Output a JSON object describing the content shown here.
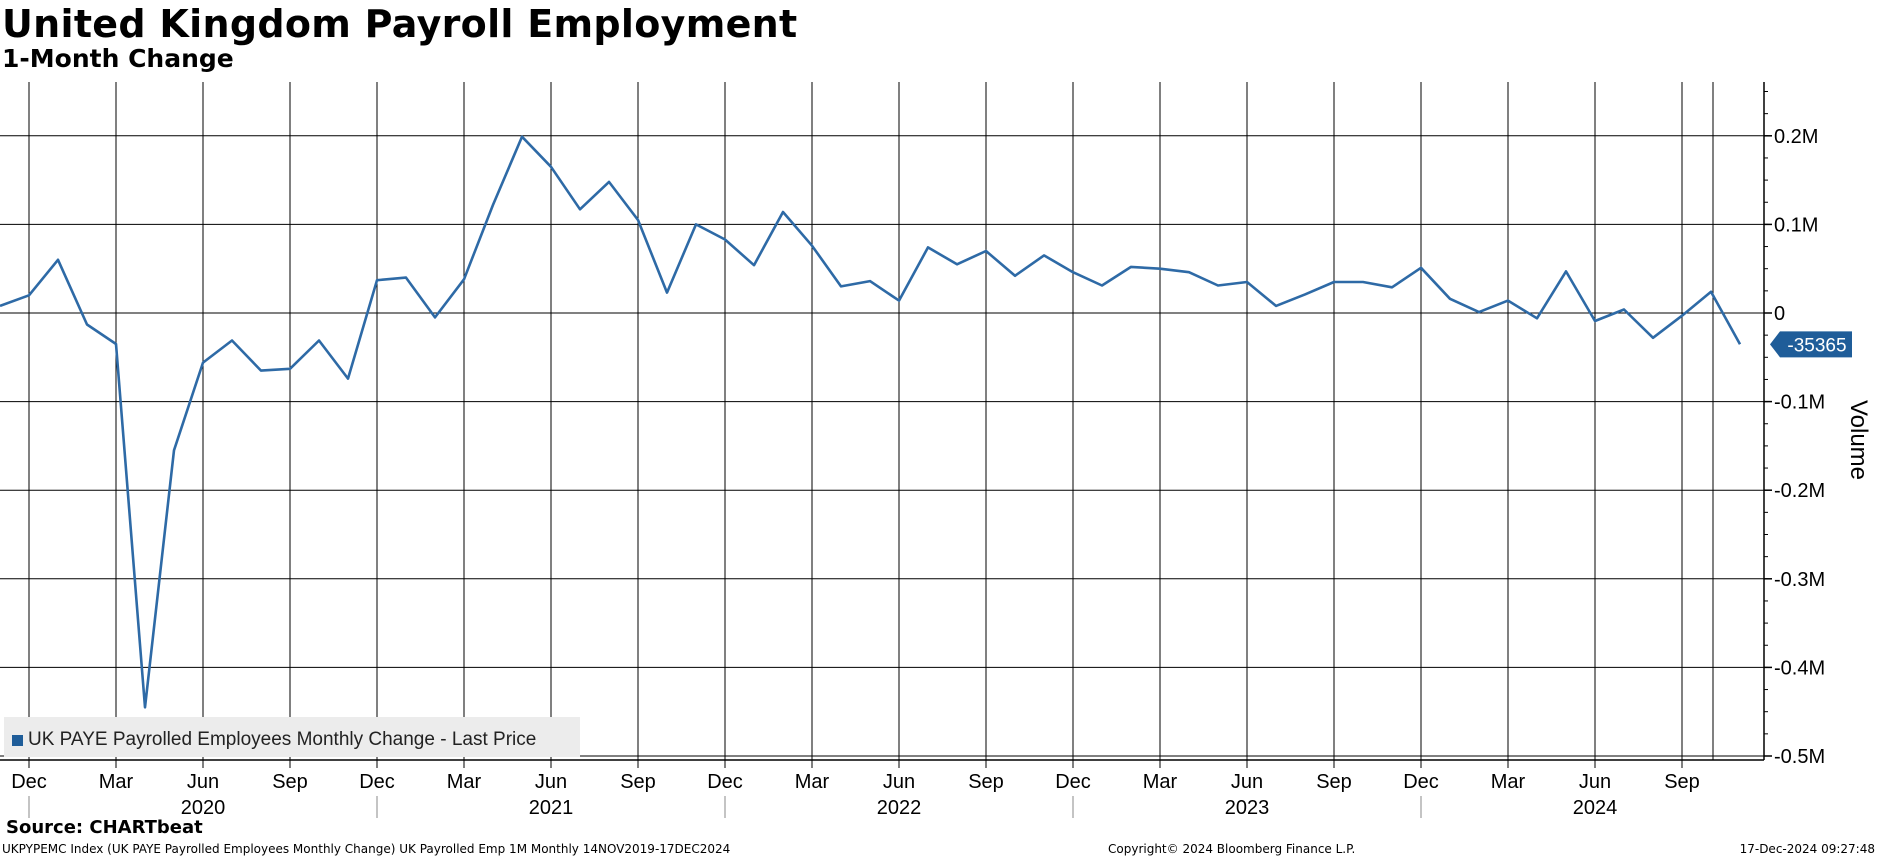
{
  "header": {
    "title": "United Kingdom Payroll Employment",
    "subtitle": "1-Month Change"
  },
  "footer": {
    "source": "Source: CHARTbeat",
    "description": "UKPYPEMC Index (UK PAYE Payrolled Employees Monthly Change) UK Payrolled Emp 1M  Monthly 14NOV2019-17DEC2024",
    "copyright": "Copyright© 2024 Bloomberg Finance L.P.",
    "timestamp": "17-Dec-2024 09:27:48"
  },
  "colors": {
    "line": "#2e6aa6",
    "last_value_bg": "#1f5d99",
    "legend_bg": "#ececec",
    "grid": "#000000"
  },
  "chart_data": {
    "type": "line",
    "ylabel": "Volume",
    "ylim": [
      -500000,
      250000
    ],
    "y_ticks": [
      200000,
      100000,
      0,
      -100000,
      -200000,
      -300000,
      -400000,
      -500000
    ],
    "y_tick_labels": [
      "0.2M",
      "0.1M",
      "0",
      "-0.1M",
      "-0.2M",
      "-0.3M",
      "-0.4M",
      "-0.5M"
    ],
    "x_tick_labels": [
      "Dec",
      "Mar",
      "Jun",
      "Sep",
      "Dec",
      "Mar",
      "Jun",
      "Sep",
      "Dec",
      "Mar",
      "Jun",
      "Sep",
      "Dec",
      "Mar",
      "Jun",
      "Sep",
      "Dec",
      "Mar",
      "Jun",
      "Sep"
    ],
    "x_year_labels": [
      "2020",
      "2021",
      "2022",
      "2023",
      "2024"
    ],
    "grid": true,
    "legend_position": "bottom-left",
    "last_value_label": "-35365",
    "series": [
      {
        "name": "UK PAYE Payrolled Employees Monthly Change - Last Price",
        "start": "2019-11",
        "values": [
          8000,
          20000,
          60000,
          -13000,
          -35000,
          -445000,
          -155000,
          -56000,
          -31000,
          -65000,
          -63000,
          -31000,
          -74000,
          37000,
          40000,
          -5000,
          38000,
          122000,
          199000,
          165000,
          117000,
          148000,
          105000,
          23000,
          100000,
          83000,
          54000,
          114000,
          76000,
          30000,
          36000,
          14000,
          74000,
          55000,
          70000,
          42000,
          65000,
          46000,
          31000,
          52000,
          50000,
          46000,
          31000,
          35000,
          8000,
          21000,
          35000,
          35000,
          29000,
          51000,
          16000,
          1000,
          14000,
          -6000,
          47000,
          -9000,
          4000,
          -28000,
          -3000,
          24000,
          -35365
        ]
      }
    ]
  }
}
